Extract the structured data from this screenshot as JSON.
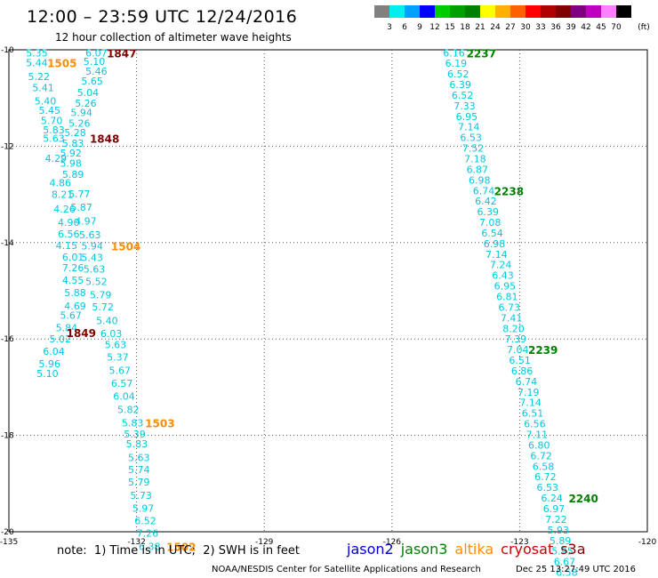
{
  "header": {
    "title": "12:00 – 23:59 UTC 12/24/2016",
    "subtitle": "12 hour collection of altimeter wave heights"
  },
  "colorbar": {
    "unit_label": "(ft)",
    "colors": [
      "#808080",
      "#00eeee",
      "#00a0ff",
      "#0000ff",
      "#00cc00",
      "#00a000",
      "#008000",
      "#ffff00",
      "#ffb000",
      "#ff6000",
      "#ff0000",
      "#b00000",
      "#800000",
      "#800080",
      "#c000c0",
      "#ff80ff",
      "#000000"
    ],
    "labels": [
      "3",
      "6",
      "9",
      "12",
      "15",
      "18",
      "21",
      "24",
      "27",
      "30",
      "33",
      "36",
      "39",
      "42",
      "45",
      "70"
    ]
  },
  "map": {
    "lon_ticks": [
      "-135",
      "-132",
      "-129",
      "-126",
      "-123",
      "-120"
    ],
    "lat_ticks": [
      "-10",
      "-12",
      "-14",
      "-16",
      "-18",
      "-20"
    ],
    "lon_range": [
      -135,
      -120
    ],
    "lat_range": [
      -10,
      -20
    ]
  },
  "passes": {
    "left_swh_color": "#00c8e0",
    "right_swh_color": "#00c8e0",
    "left_track_a": [
      {
        "v": "5.35",
        "lon": -134.6,
        "lat": -10.06
      },
      {
        "v": "5.44",
        "lon": -134.6,
        "lat": -10.27
      },
      {
        "v": "5.22",
        "lon": -134.55,
        "lat": -10.55
      },
      {
        "v": "5.41",
        "lon": -134.45,
        "lat": -10.78
      },
      {
        "v": "5.40",
        "lon": -134.4,
        "lat": -11.06
      },
      {
        "v": "5.45",
        "lon": -134.3,
        "lat": -11.25
      },
      {
        "v": "5.70",
        "lon": -134.25,
        "lat": -11.47
      },
      {
        "v": "5.83",
        "lon": -134.2,
        "lat": -11.66
      },
      {
        "v": "5.63",
        "lon": -134.2,
        "lat": -11.84
      },
      {
        "v": "4.29",
        "lon": -134.15,
        "lat": -12.25
      },
      {
        "v": "4.86",
        "lon": -134.05,
        "lat": -12.76
      },
      {
        "v": "8.21",
        "lon": -134.0,
        "lat": -13.0
      },
      {
        "v": "4.26",
        "lon": -133.95,
        "lat": -13.3
      },
      {
        "v": "4.90",
        "lon": -133.85,
        "lat": -13.58
      },
      {
        "v": "6.56",
        "lon": -133.85,
        "lat": -13.82
      },
      {
        "v": "4.15",
        "lon": -133.9,
        "lat": -14.06
      },
      {
        "v": "6.01",
        "lon": -133.75,
        "lat": -14.3
      },
      {
        "v": "7.26",
        "lon": -133.75,
        "lat": -14.52
      },
      {
        "v": "4.55",
        "lon": -133.75,
        "lat": -14.78
      },
      {
        "v": "5.88",
        "lon": -133.7,
        "lat": -15.04
      },
      {
        "v": "4.69",
        "lon": -133.7,
        "lat": -15.31
      },
      {
        "v": "5.67",
        "lon": -133.8,
        "lat": -15.51
      },
      {
        "v": "5.84",
        "lon": -133.9,
        "lat": -15.77
      },
      {
        "v": "5.02",
        "lon": -134.05,
        "lat": -16.0
      },
      {
        "v": "6.04",
        "lon": -134.2,
        "lat": -16.25
      },
      {
        "v": "5.96",
        "lon": -134.3,
        "lat": -16.51
      },
      {
        "v": "5.10",
        "lon": -134.35,
        "lat": -16.72
      }
    ],
    "left_track_b": [
      {
        "v": "6.07",
        "lon": -133.2,
        "lat": -10.06
      },
      {
        "v": "5.10",
        "lon": -133.25,
        "lat": -10.24
      },
      {
        "v": "5.46",
        "lon": -133.2,
        "lat": -10.44
      },
      {
        "v": "5.65",
        "lon": -133.3,
        "lat": -10.65
      },
      {
        "v": "5.04",
        "lon": -133.4,
        "lat": -10.89
      },
      {
        "v": "5.26",
        "lon": -133.45,
        "lat": -11.11
      },
      {
        "v": "5.94",
        "lon": -133.55,
        "lat": -11.3
      },
      {
        "v": "5.26",
        "lon": -133.6,
        "lat": -11.52
      },
      {
        "v": "5.28",
        "lon": -133.7,
        "lat": -11.72
      },
      {
        "v": "5.83",
        "lon": -133.75,
        "lat": -11.94
      },
      {
        "v": "5.92",
        "lon": -133.8,
        "lat": -12.14
      },
      {
        "v": "5.98",
        "lon": -133.8,
        "lat": -12.35
      },
      {
        "v": "5.89",
        "lon": -133.75,
        "lat": -12.58
      },
      {
        "v": "5.77",
        "lon": -133.6,
        "lat": -12.99
      },
      {
        "v": "5.87",
        "lon": -133.55,
        "lat": -13.27
      },
      {
        "v": "4.97",
        "lon": -133.45,
        "lat": -13.55
      },
      {
        "v": "5.63",
        "lon": -133.35,
        "lat": -13.84
      },
      {
        "v": "5.94",
        "lon": -133.3,
        "lat": -14.07
      },
      {
        "v": "5.43",
        "lon": -133.3,
        "lat": -14.31
      },
      {
        "v": "5.63",
        "lon": -133.25,
        "lat": -14.55
      },
      {
        "v": "5.52",
        "lon": -133.2,
        "lat": -14.81
      },
      {
        "v": "5.79",
        "lon": -133.1,
        "lat": -15.08
      },
      {
        "v": "5.72",
        "lon": -133.05,
        "lat": -15.33
      },
      {
        "v": "5.40",
        "lon": -132.95,
        "lat": -15.62
      },
      {
        "v": "6.03",
        "lon": -132.85,
        "lat": -15.89
      },
      {
        "v": "5.63",
        "lon": -132.75,
        "lat": -16.12
      },
      {
        "v": "5.37",
        "lon": -132.7,
        "lat": -16.37
      },
      {
        "v": "5.67",
        "lon": -132.65,
        "lat": -16.65
      },
      {
        "v": "6.57",
        "lon": -132.6,
        "lat": -16.92
      },
      {
        "v": "6.04",
        "lon": -132.55,
        "lat": -17.19
      },
      {
        "v": "5.82",
        "lon": -132.45,
        "lat": -17.46
      },
      {
        "v": "5.83",
        "lon": -132.35,
        "lat": -17.74
      },
      {
        "v": "5.39",
        "lon": -132.3,
        "lat": -17.97
      },
      {
        "v": "5.83",
        "lon": -132.25,
        "lat": -18.17
      },
      {
        "v": "5.63",
        "lon": -132.2,
        "lat": -18.46
      },
      {
        "v": "5.74",
        "lon": -132.2,
        "lat": -18.71
      },
      {
        "v": "5.79",
        "lon": -132.2,
        "lat": -18.97
      },
      {
        "v": "5.73",
        "lon": -132.15,
        "lat": -19.24
      },
      {
        "v": "5.97",
        "lon": -132.1,
        "lat": -19.51
      },
      {
        "v": "6.52",
        "lon": -132.05,
        "lat": -19.77
      },
      {
        "v": "7.26",
        "lon": -132.0,
        "lat": -20.03
      },
      {
        "v": "6.38",
        "lon": -131.95,
        "lat": -20.3
      }
    ],
    "right_track": [
      {
        "v": "6.16",
        "lon": -124.8,
        "lat": -10.06
      },
      {
        "v": "6.19",
        "lon": -124.75,
        "lat": -10.28
      },
      {
        "v": "6.52",
        "lon": -124.7,
        "lat": -10.5
      },
      {
        "v": "6.39",
        "lon": -124.65,
        "lat": -10.72
      },
      {
        "v": "6.52",
        "lon": -124.6,
        "lat": -10.94
      },
      {
        "v": "7.33",
        "lon": -124.55,
        "lat": -11.16
      },
      {
        "v": "6.95",
        "lon": -124.5,
        "lat": -11.38
      },
      {
        "v": "7.14",
        "lon": -124.45,
        "lat": -11.6
      },
      {
        "v": "6.53",
        "lon": -124.4,
        "lat": -11.82
      },
      {
        "v": "7.52",
        "lon": -124.35,
        "lat": -12.04
      },
      {
        "v": "7.18",
        "lon": -124.3,
        "lat": -12.26
      },
      {
        "v": "6.87",
        "lon": -124.25,
        "lat": -12.48
      },
      {
        "v": "6.98",
        "lon": -124.2,
        "lat": -12.7
      },
      {
        "v": "6.74",
        "lon": -124.1,
        "lat": -12.92
      },
      {
        "v": "6.42",
        "lon": -124.05,
        "lat": -13.14
      },
      {
        "v": "6.39",
        "lon": -124.0,
        "lat": -13.36
      },
      {
        "v": "7.08",
        "lon": -123.95,
        "lat": -13.58
      },
      {
        "v": "6.54",
        "lon": -123.9,
        "lat": -13.8
      },
      {
        "v": "6.98",
        "lon": -123.85,
        "lat": -14.02
      },
      {
        "v": "7.14",
        "lon": -123.8,
        "lat": -14.24
      },
      {
        "v": "7.24",
        "lon": -123.7,
        "lat": -14.46
      },
      {
        "v": "6.43",
        "lon": -123.65,
        "lat": -14.68
      },
      {
        "v": "6.95",
        "lon": -123.6,
        "lat": -14.9
      },
      {
        "v": "6.81",
        "lon": -123.55,
        "lat": -15.12
      },
      {
        "v": "6.73",
        "lon": -123.5,
        "lat": -15.34
      },
      {
        "v": "7.41",
        "lon": -123.45,
        "lat": -15.56
      },
      {
        "v": "8.20",
        "lon": -123.4,
        "lat": -15.78
      },
      {
        "v": "7.39",
        "lon": -123.35,
        "lat": -16.0
      },
      {
        "v": "7.04",
        "lon": -123.3,
        "lat": -16.22
      },
      {
        "v": "6.51",
        "lon": -123.25,
        "lat": -16.44
      },
      {
        "v": "6.86",
        "lon": -123.2,
        "lat": -16.66
      },
      {
        "v": "6.74",
        "lon": -123.1,
        "lat": -16.88
      },
      {
        "v": "7.19",
        "lon": -123.05,
        "lat": -17.1
      },
      {
        "v": "7.14",
        "lon": -123.0,
        "lat": -17.32
      },
      {
        "v": "6.51",
        "lon": -122.95,
        "lat": -17.54
      },
      {
        "v": "6.56",
        "lon": -122.9,
        "lat": -17.76
      },
      {
        "v": "7.11",
        "lon": -122.85,
        "lat": -17.98
      },
      {
        "v": "6.80",
        "lon": -122.8,
        "lat": -18.2
      },
      {
        "v": "6.72",
        "lon": -122.75,
        "lat": -18.42
      },
      {
        "v": "6.58",
        "lon": -122.7,
        "lat": -18.64
      },
      {
        "v": "6.72",
        "lon": -122.65,
        "lat": -18.86
      },
      {
        "v": "6.53",
        "lon": -122.6,
        "lat": -19.08
      },
      {
        "v": "6.24",
        "lon": -122.5,
        "lat": -19.3
      },
      {
        "v": "6.97",
        "lon": -122.45,
        "lat": -19.52
      },
      {
        "v": "7.22",
        "lon": -122.4,
        "lat": -19.74
      },
      {
        "v": "5.93",
        "lon": -122.35,
        "lat": -19.96
      },
      {
        "v": "5.89",
        "lon": -122.3,
        "lat": -20.18
      },
      {
        "v": "5.95",
        "lon": -122.25,
        "lat": -20.4
      },
      {
        "v": "6.67",
        "lon": -122.2,
        "lat": -20.62
      },
      {
        "v": "6.58",
        "lon": -122.15,
        "lat": -20.84
      },
      {
        "v": "6.46",
        "lon": -122.1,
        "lat": -21.06
      }
    ],
    "time_labels": [
      {
        "t": "1847",
        "color": "#800000",
        "lon": -132.7,
        "lat": -10.06
      },
      {
        "t": "1505",
        "color": "#ff8c00",
        "lon": -134.1,
        "lat": -10.27
      },
      {
        "t": "1848",
        "color": "#800000",
        "lon": -133.1,
        "lat": -11.84
      },
      {
        "t": "1504",
        "color": "#ff8c00",
        "lon": -132.6,
        "lat": -14.07
      },
      {
        "t": "1849",
        "color": "#800000",
        "lon": -133.65,
        "lat": -15.87
      },
      {
        "t": "1503",
        "color": "#ff8c00",
        "lon": -131.8,
        "lat": -17.74
      },
      {
        "t": "1502",
        "color": "#ff8c00",
        "lon": -131.3,
        "lat": -20.3
      },
      {
        "t": "2237",
        "color": "#008000",
        "lon": -124.25,
        "lat": -10.06
      },
      {
        "t": "2238",
        "color": "#008000",
        "lon": -123.6,
        "lat": -12.92
      },
      {
        "t": "2239",
        "color": "#008000",
        "lon": -122.8,
        "lat": -16.22
      },
      {
        "t": "2240",
        "color": "#008000",
        "lon": -121.85,
        "lat": -19.3
      }
    ]
  },
  "footer": {
    "note": "note:  1) Time is in UTC;  2) SWH is in feet",
    "legend": [
      {
        "label": "jason2",
        "color": "#0000cc"
      },
      {
        "label": "jason3",
        "color": "#008000"
      },
      {
        "label": "altika",
        "color": "#ff8c00"
      },
      {
        "label": "cryosat",
        "color": "#cc0000"
      },
      {
        "label": "s3a",
        "color": "#800000"
      }
    ],
    "credit": "NOAA/NESDIS Center for Satellite Applications and Research",
    "timestamp": "Dec 25 13:27:49 UTC 2016"
  }
}
